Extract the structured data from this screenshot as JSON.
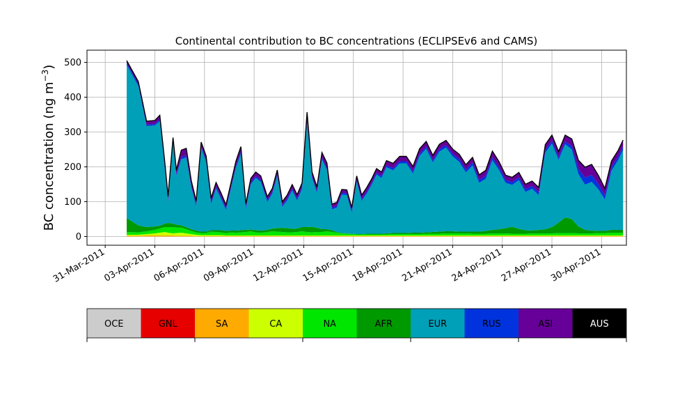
{
  "chart_data": {
    "type": "area",
    "stacked": true,
    "title": "Continental contribution to BC concentrations (ECLIPSEv6 and CAMS)",
    "ylabel": "BC concentration (ng m",
    "ylabel_unit_sup": "−3",
    "ylabel_close": ")",
    "ylim": [
      -25,
      535
    ],
    "yticks": [
      0,
      100,
      200,
      300,
      400,
      500
    ],
    "xlim": [
      -1.1,
      31.5
    ],
    "xticks": [
      0,
      3,
      6,
      9,
      12,
      15,
      18,
      21,
      24,
      27,
      30
    ],
    "xtick_labels": [
      "31-Mar-2011",
      "03-Apr-2011",
      "06-Apr-2011",
      "09-Apr-2011",
      "12-Apr-2011",
      "15-Apr-2011",
      "18-Apr-2011",
      "21-Apr-2011",
      "24-Apr-2011",
      "27-Apr-2011",
      "30-Apr-2011"
    ],
    "grid": true,
    "x_unit": "days after 31-Mar-2011",
    "x": [
      1.3,
      2.0,
      2.5,
      3.0,
      3.3,
      3.6,
      3.8,
      4.1,
      4.3,
      4.6,
      4.9,
      5.2,
      5.5,
      5.8,
      6.1,
      6.4,
      6.7,
      7.0,
      7.3,
      7.6,
      7.9,
      8.2,
      8.5,
      8.8,
      9.1,
      9.4,
      9.8,
      10.1,
      10.4,
      10.7,
      11.0,
      11.3,
      11.6,
      11.9,
      12.2,
      12.5,
      12.8,
      13.1,
      13.4,
      13.7,
      14.0,
      14.3,
      14.6,
      14.9,
      15.2,
      15.5,
      15.8,
      16.1,
      16.4,
      16.7,
      17.0,
      17.4,
      17.8,
      18.2,
      18.6,
      19.0,
      19.4,
      19.8,
      20.2,
      20.6,
      21.0,
      21.4,
      21.8,
      22.2,
      22.6,
      23.0,
      23.4,
      23.8,
      24.2,
      24.6,
      25.0,
      25.4,
      25.8,
      26.2,
      26.6,
      27.0,
      27.4,
      27.8,
      28.2,
      28.6,
      29.0,
      29.4,
      29.8,
      30.2,
      30.6,
      31.0,
      31.3
    ],
    "series": [
      {
        "name": "OCE",
        "color": "#cccccc",
        "values": [
          0,
          0,
          0,
          0,
          0,
          0,
          0,
          0,
          0,
          0,
          0,
          0,
          0,
          0,
          0,
          0,
          0,
          0,
          0,
          0,
          0,
          0,
          0,
          0,
          0,
          0,
          0,
          0,
          0,
          0,
          0,
          0,
          0,
          0,
          0,
          0,
          0,
          0,
          0,
          0,
          0,
          0,
          0,
          0,
          0,
          0,
          0,
          0,
          0,
          0,
          0,
          0,
          0,
          0,
          0,
          0,
          0,
          0,
          0,
          0,
          0,
          0,
          0,
          0,
          0,
          0,
          0,
          0,
          0,
          0,
          0,
          0,
          0,
          0,
          0,
          0,
          0,
          0,
          0,
          0,
          0,
          0,
          0,
          0,
          0,
          0,
          0
        ]
      },
      {
        "name": "GNL",
        "color": "#e60000",
        "values": [
          0,
          0,
          0,
          0,
          0,
          0,
          0,
          0,
          0,
          0,
          0,
          0,
          0,
          0,
          0,
          0,
          0,
          0,
          0,
          0,
          0,
          0,
          0,
          0,
          0,
          0,
          0,
          0,
          0,
          0,
          0,
          0,
          0,
          0,
          0,
          0,
          0,
          0,
          0,
          0,
          0,
          0,
          0,
          0,
          0,
          0,
          0,
          0,
          0,
          0,
          0,
          0,
          0,
          0,
          0,
          0,
          0,
          0,
          0,
          0,
          0,
          0,
          0,
          0,
          0,
          0,
          0,
          0,
          0,
          0,
          0,
          0,
          0,
          0,
          0,
          0,
          0,
          0,
          0,
          0,
          0,
          0,
          0,
          0,
          0,
          0,
          0
        ]
      },
      {
        "name": "SA",
        "color": "#ffaa00",
        "values": [
          2,
          2,
          3,
          3,
          3,
          3,
          3,
          3,
          2,
          2,
          2,
          2,
          1,
          1,
          1,
          1,
          1,
          1,
          1,
          1,
          1,
          1,
          1,
          1,
          1,
          1,
          1,
          1,
          1,
          1,
          1,
          1,
          1,
          1,
          1,
          1,
          1,
          1,
          1,
          1,
          1,
          1,
          1,
          1,
          1,
          1,
          1,
          1,
          1,
          1,
          1,
          1,
          1,
          1,
          1,
          1,
          1,
          1,
          1,
          1,
          1,
          1,
          1,
          1,
          1,
          1,
          1,
          1,
          1,
          1,
          1,
          1,
          1,
          1,
          1,
          1,
          1,
          1,
          1,
          1,
          1,
          1,
          1,
          1,
          1,
          1,
          1
        ]
      },
      {
        "name": "CA",
        "color": "#ccff00",
        "values": [
          3,
          3,
          4,
          6,
          8,
          10,
          8,
          6,
          8,
          9,
          7,
          5,
          4,
          3,
          3,
          3,
          3,
          3,
          2,
          2,
          2,
          2,
          2,
          2,
          2,
          2,
          2,
          2,
          2,
          2,
          2,
          2,
          2,
          2,
          2,
          2,
          2,
          2,
          2,
          2,
          2,
          2,
          2,
          2,
          2,
          2,
          2,
          2,
          2,
          2,
          2,
          2,
          2,
          2,
          2,
          2,
          2,
          2,
          2,
          2,
          2,
          2,
          2,
          2,
          2,
          2,
          2,
          2,
          2,
          2,
          2,
          2,
          2,
          2,
          2,
          2,
          2,
          2,
          2,
          2,
          2,
          2,
          2,
          2,
          2,
          2,
          2
        ]
      },
      {
        "name": "NA",
        "color": "#00e600",
        "values": [
          8,
          7,
          8,
          10,
          12,
          14,
          16,
          18,
          16,
          15,
          12,
          9,
          7,
          6,
          6,
          10,
          9,
          8,
          7,
          9,
          8,
          9,
          10,
          12,
          9,
          8,
          10,
          12,
          11,
          10,
          9,
          9,
          10,
          12,
          10,
          9,
          10,
          10,
          12,
          10,
          8,
          6,
          5,
          4,
          3,
          3,
          3,
          3,
          3,
          3,
          3,
          4,
          4,
          4,
          4,
          4,
          5,
          5,
          5,
          6,
          6,
          6,
          6,
          5,
          5,
          5,
          6,
          6,
          6,
          5,
          5,
          5,
          6,
          6,
          6,
          6,
          7,
          7,
          7,
          6,
          6,
          6,
          7,
          7,
          8,
          8,
          8
        ]
      },
      {
        "name": "AFR",
        "color": "#009900",
        "values": [
          40,
          20,
          12,
          10,
          8,
          10,
          12,
          10,
          8,
          6,
          6,
          5,
          5,
          4,
          4,
          4,
          5,
          6,
          6,
          5,
          6,
          6,
          6,
          5,
          6,
          6,
          6,
          8,
          10,
          12,
          12,
          10,
          10,
          12,
          14,
          16,
          12,
          8,
          6,
          5,
          2,
          1,
          1,
          1,
          1,
          1,
          2,
          2,
          2,
          2,
          3,
          3,
          3,
          3,
          4,
          4,
          4,
          5,
          6,
          6,
          6,
          5,
          5,
          6,
          6,
          8,
          10,
          12,
          15,
          20,
          14,
          10,
          8,
          10,
          12,
          18,
          30,
          45,
          40,
          20,
          10,
          8,
          6,
          6,
          8,
          8,
          8
        ]
      },
      {
        "name": "EUR",
        "color": "#00a0b8",
        "values": [
          440,
          400,
          290,
          290,
          300,
          160,
          60,
          230,
          140,
          190,
          200,
          120,
          70,
          240,
          200,
          75,
          120,
          90,
          60,
          120,
          180,
          220,
          60,
          130,
          150,
          140,
          80,
          100,
          150,
          60,
          80,
          110,
          80,
          110,
          300,
          140,
          100,
          200,
          170,
          60,
          70,
          110,
          110,
          60,
          150,
          95,
          115,
          140,
          170,
          160,
          190,
          180,
          200,
          200,
          170,
          220,
          240,
          200,
          230,
          240,
          215,
          200,
          170,
          190,
          140,
          150,
          200,
          170,
          130,
          120,
          140,
          110,
          120,
          100,
          220,
          240,
          180,
          210,
          200,
          150,
          130,
          140,
          120,
          90,
          170,
          200,
          230
        ]
      },
      {
        "name": "RUS",
        "color": "#0033dd",
        "values": [
          5,
          5,
          4,
          4,
          5,
          5,
          5,
          5,
          5,
          6,
          6,
          5,
          5,
          5,
          5,
          5,
          5,
          5,
          5,
          5,
          5,
          5,
          5,
          5,
          5,
          5,
          5,
          5,
          5,
          5,
          5,
          5,
          5,
          5,
          5,
          5,
          5,
          5,
          5,
          5,
          5,
          5,
          5,
          5,
          5,
          5,
          5,
          5,
          5,
          5,
          5,
          6,
          6,
          6,
          6,
          6,
          6,
          6,
          7,
          7,
          7,
          8,
          8,
          8,
          8,
          8,
          8,
          8,
          8,
          8,
          8,
          8,
          8,
          8,
          8,
          8,
          8,
          8,
          10,
          15,
          20,
          20,
          15,
          12,
          10,
          10,
          10
        ]
      },
      {
        "name": "ASI",
        "color": "#660099",
        "values": [
          7,
          8,
          10,
          10,
          12,
          12,
          12,
          12,
          12,
          20,
          20,
          15,
          10,
          12,
          12,
          12,
          12,
          12,
          10,
          12,
          14,
          15,
          10,
          12,
          12,
          12,
          10,
          10,
          12,
          10,
          10,
          12,
          12,
          12,
          25,
          12,
          12,
          15,
          15,
          10,
          10,
          10,
          10,
          10,
          12,
          12,
          12,
          12,
          12,
          12,
          14,
          14,
          14,
          14,
          14,
          15,
          15,
          14,
          14,
          14,
          14,
          14,
          14,
          15,
          15,
          16,
          18,
          16,
          14,
          14,
          14,
          14,
          14,
          14,
          15,
          16,
          16,
          18,
          20,
          25,
          30,
          30,
          25,
          20,
          18,
          18,
          18
        ]
      },
      {
        "name": "AUS",
        "color": "#000000",
        "values": [
          0,
          0,
          0,
          0,
          0,
          0,
          0,
          0,
          0,
          0,
          0,
          0,
          0,
          0,
          0,
          0,
          0,
          0,
          0,
          0,
          0,
          0,
          0,
          0,
          0,
          0,
          0,
          0,
          0,
          0,
          0,
          0,
          0,
          0,
          0,
          0,
          0,
          0,
          0,
          0,
          0,
          0,
          0,
          0,
          0,
          0,
          0,
          0,
          0,
          0,
          0,
          0,
          0,
          0,
          0,
          0,
          0,
          0,
          0,
          0,
          0,
          0,
          0,
          0,
          0,
          0,
          0,
          0,
          0,
          0,
          0,
          0,
          0,
          0,
          0,
          0,
          0,
          0,
          0,
          0,
          0,
          0,
          0,
          0,
          0,
          0,
          0
        ]
      }
    ],
    "legend_placement": "bottom colorbar"
  },
  "legend": {
    "items": [
      {
        "label": "OCE",
        "color": "#cccccc",
        "text_color": "#000000"
      },
      {
        "label": "GNL",
        "color": "#e60000",
        "text_color": "#000000"
      },
      {
        "label": "SA",
        "color": "#ffaa00",
        "text_color": "#000000"
      },
      {
        "label": "CA",
        "color": "#ccff00",
        "text_color": "#000000"
      },
      {
        "label": "NA",
        "color": "#00e600",
        "text_color": "#000000"
      },
      {
        "label": "AFR",
        "color": "#009900",
        "text_color": "#000000"
      },
      {
        "label": "EUR",
        "color": "#00a0b8",
        "text_color": "#000000"
      },
      {
        "label": "RUS",
        "color": "#0033dd",
        "text_color": "#000000"
      },
      {
        "label": "ASI",
        "color": "#660099",
        "text_color": "#000000"
      },
      {
        "label": "AUS",
        "color": "#000000",
        "text_color": "#ffffff"
      }
    ]
  }
}
